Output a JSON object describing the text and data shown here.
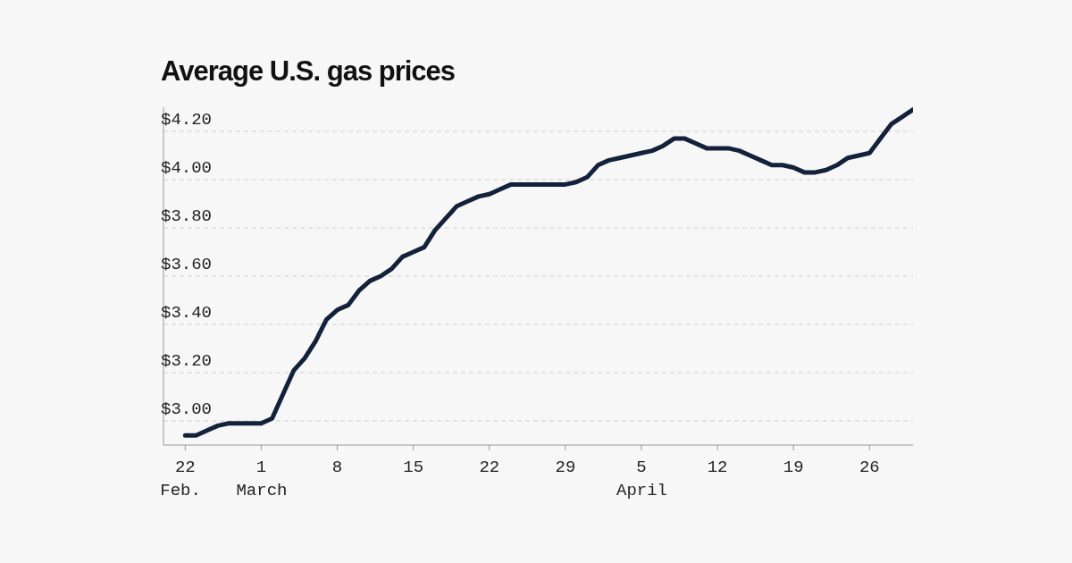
{
  "chart_data": {
    "type": "line",
    "title": "Average U.S. gas prices",
    "x": [
      "--02-22",
      "--02-23",
      "--02-24",
      "--02-25",
      "--02-26",
      "--02-27",
      "--02-28",
      "--03-01",
      "--03-02",
      "--03-03",
      "--03-04",
      "--03-05",
      "--03-06",
      "--03-07",
      "--03-08",
      "--03-09",
      "--03-10",
      "--03-11",
      "--03-12",
      "--03-13",
      "--03-14",
      "--03-15",
      "--03-16",
      "--03-17",
      "--03-18",
      "--03-19",
      "--03-20",
      "--03-21",
      "--03-22",
      "--03-23",
      "--03-24",
      "--03-25",
      "--03-26",
      "--03-27",
      "--03-28",
      "--03-29",
      "--03-30",
      "--03-31",
      "--04-01",
      "--04-02",
      "--04-03",
      "--04-04",
      "--04-05",
      "--04-06",
      "--04-07",
      "--04-08",
      "--04-09",
      "--04-10",
      "--04-11",
      "--04-12",
      "--04-13",
      "--04-14",
      "--04-15",
      "--04-16",
      "--04-17",
      "--04-18",
      "--04-19",
      "--04-20",
      "--04-21",
      "--04-22",
      "--04-23",
      "--04-24",
      "--04-25",
      "--04-26",
      "--04-27",
      "--04-28",
      "--04-29",
      "--04-30"
    ],
    "series": [
      {
        "color": "#13213a",
        "values": [
          2.94,
          2.94,
          2.96,
          2.98,
          2.99,
          2.99,
          2.99,
          2.99,
          3.01,
          3.11,
          3.21,
          3.26,
          3.33,
          3.42,
          3.46,
          3.48,
          3.54,
          3.58,
          3.6,
          3.63,
          3.68,
          3.7,
          3.72,
          3.79,
          3.84,
          3.89,
          3.91,
          3.93,
          3.94,
          3.96,
          3.98,
          3.98,
          3.98,
          3.98,
          3.98,
          3.98,
          3.99,
          4.01,
          4.06,
          4.08,
          4.09,
          4.1,
          4.11,
          4.12,
          4.14,
          4.17,
          4.17,
          4.15,
          4.13,
          4.13,
          4.13,
          4.12,
          4.1,
          4.08,
          4.06,
          4.06,
          4.05,
          4.03,
          4.03,
          4.04,
          4.06,
          4.09,
          4.1,
          4.11,
          4.17,
          4.23,
          4.26,
          4.29
        ]
      }
    ],
    "xlim": [
      "--02-20",
      "--04-30"
    ],
    "xticks": [
      {
        "value": "--02-22",
        "label": "22\nFeb."
      },
      {
        "value": "--03-01",
        "label": "1\nMarch"
      },
      {
        "value": "--03-08",
        "label": "8"
      },
      {
        "value": "--03-15",
        "label": "15"
      },
      {
        "value": "--03-22",
        "label": "22"
      },
      {
        "value": "--03-29",
        "label": "29"
      },
      {
        "value": "--04-05",
        "label": "5\nApril"
      },
      {
        "value": "--04-12",
        "label": "12"
      },
      {
        "value": "--04-19",
        "label": "19"
      },
      {
        "value": "--04-26",
        "label": "26"
      }
    ],
    "ylim": [
      2.9,
      4.3
    ],
    "yticks": [
      {
        "value": 3,
        "label": "$3.00"
      },
      {
        "value": 3.2,
        "label": "$3.20"
      },
      {
        "value": 3.4,
        "label": "$3.40"
      },
      {
        "value": 3.6,
        "label": "$3.60"
      },
      {
        "value": 3.8,
        "label": "$3.80"
      },
      {
        "value": 4,
        "label": "$4.00"
      },
      {
        "value": 4.2,
        "label": "$4.20"
      }
    ],
    "grid": "y",
    "marker": "none",
    "line_style": "solid",
    "legend": false
  }
}
